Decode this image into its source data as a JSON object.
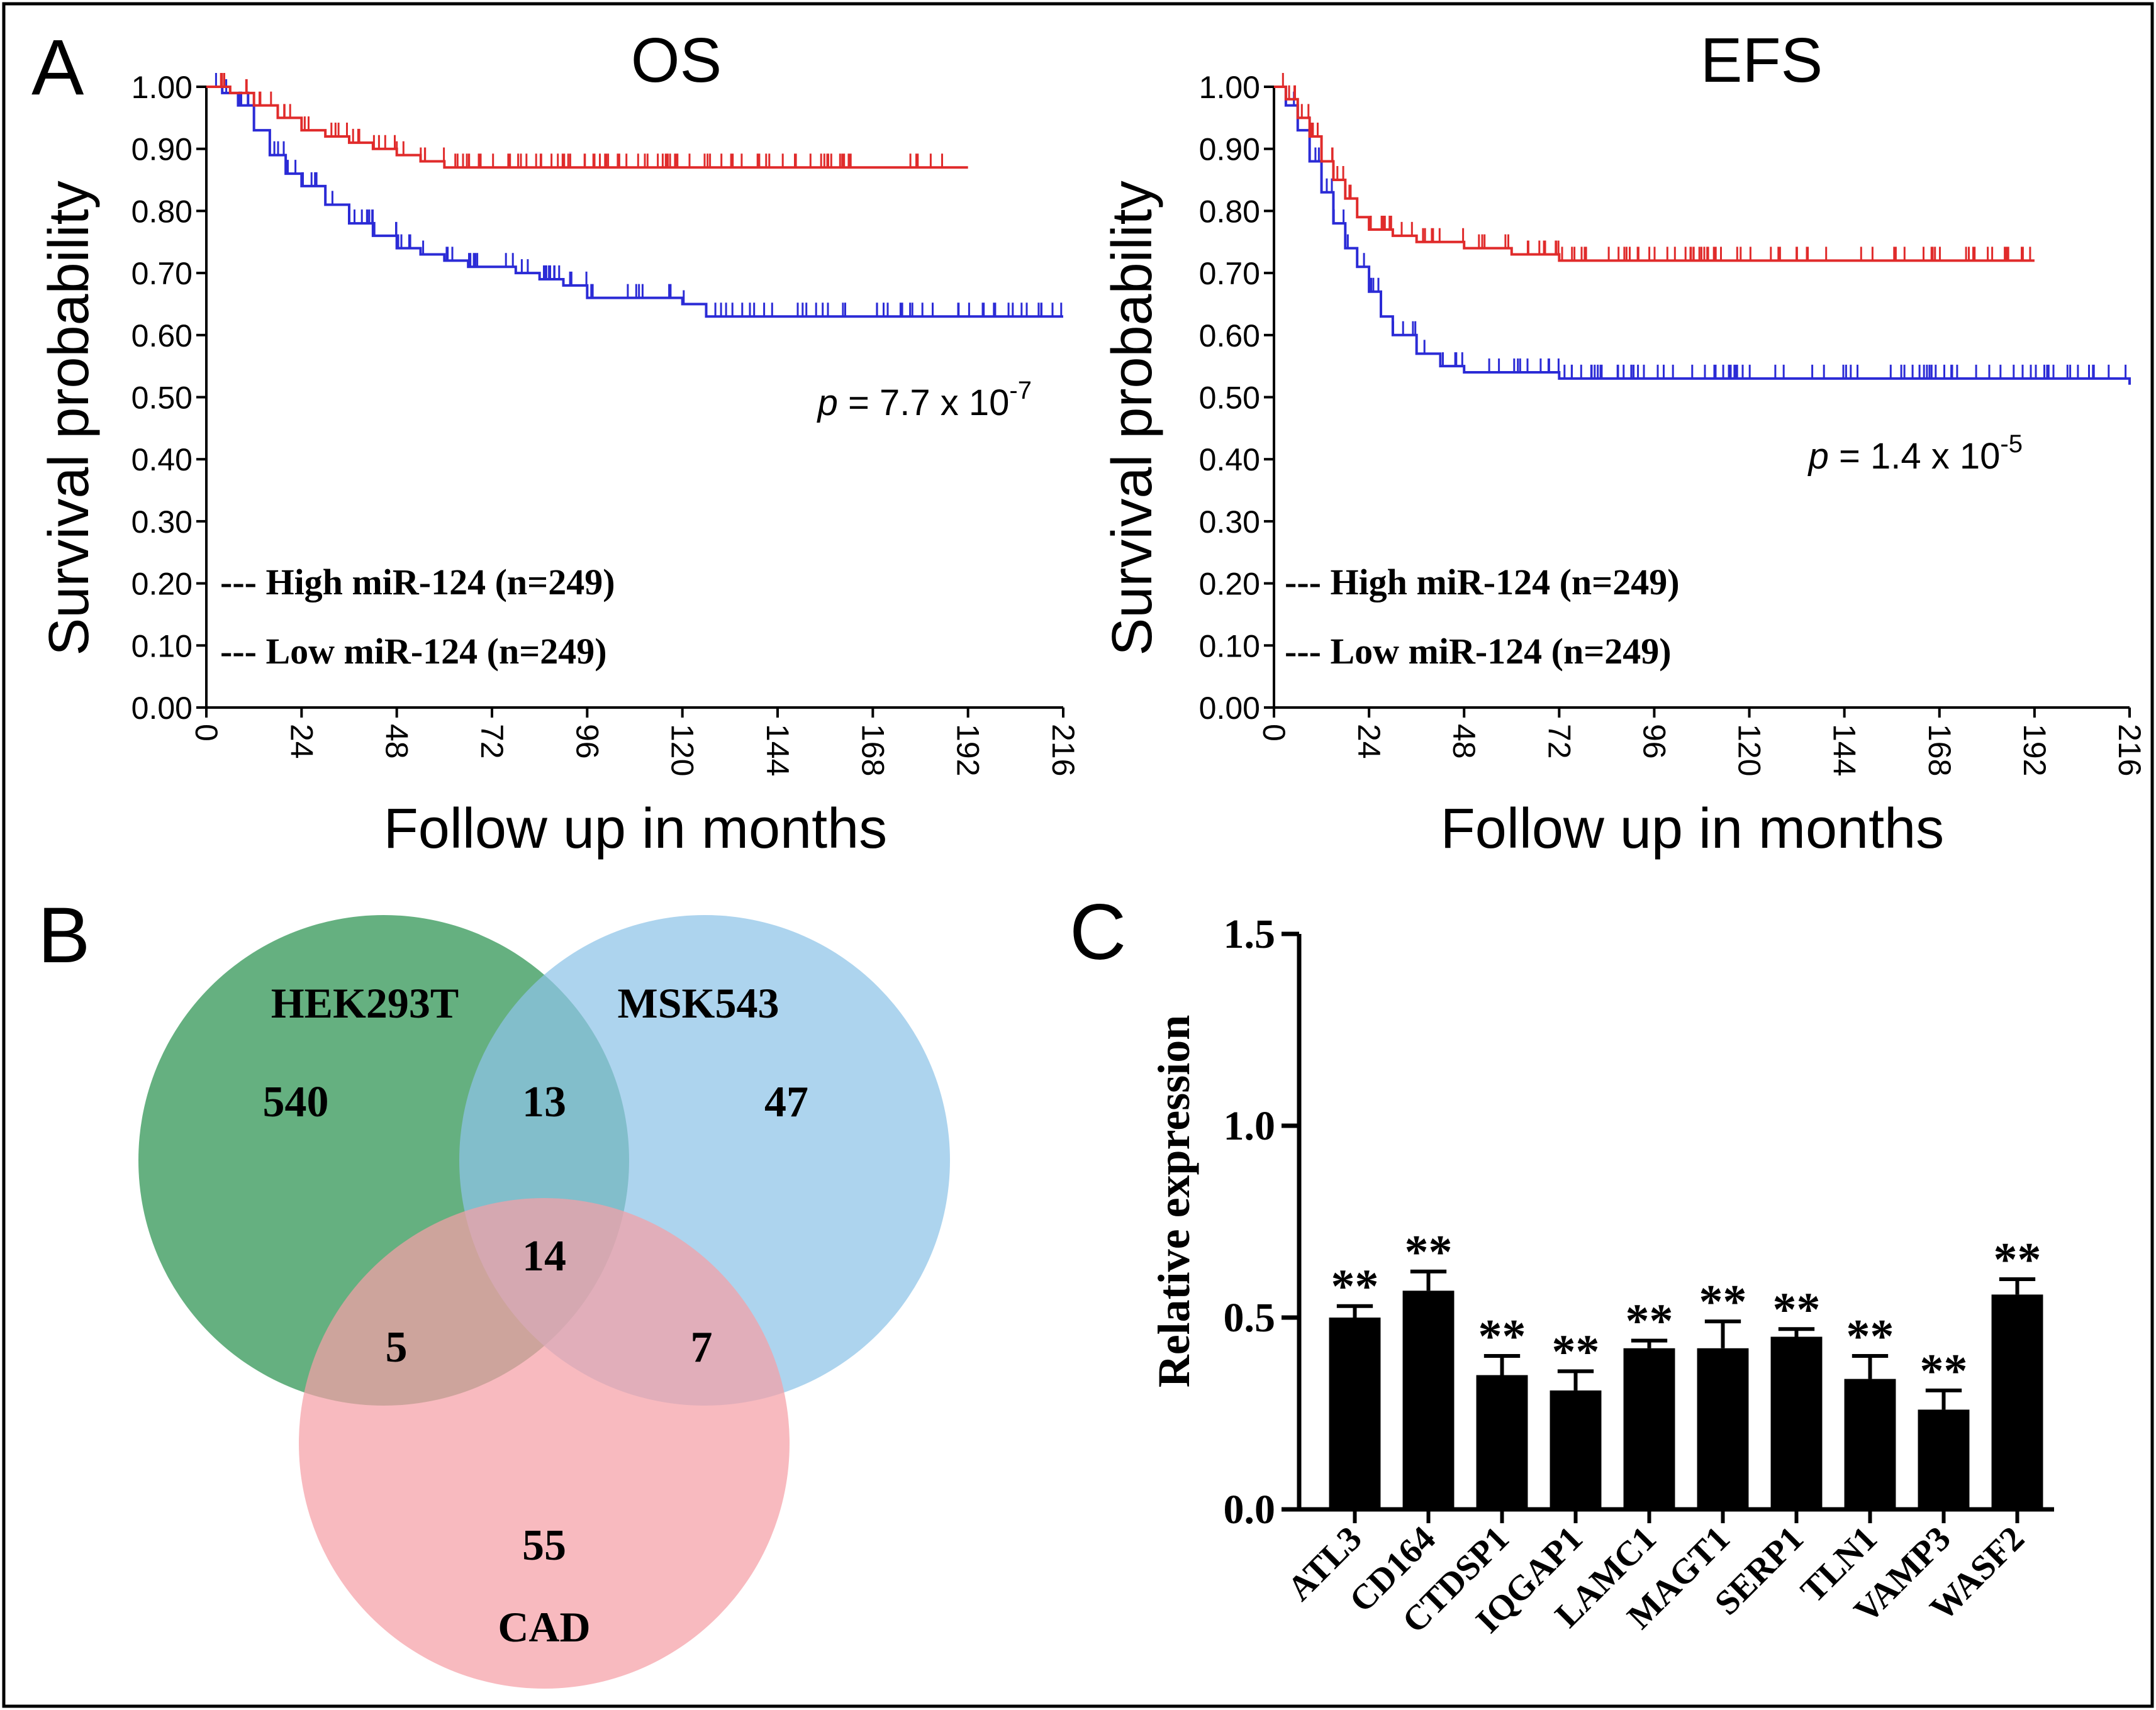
{
  "figure": {
    "panel_a_label": "A",
    "panel_b_label": "B",
    "panel_c_label": "C"
  },
  "chart_data": [
    {
      "type": "line",
      "panel": "A",
      "title": "OS",
      "xlabel": "Follow up in months",
      "ylabel": "Survival probability",
      "xlim": [
        0,
        216
      ],
      "ylim": [
        0,
        1
      ],
      "x_ticks": [
        "0",
        "24",
        "48",
        "72",
        "96",
        "120",
        "144",
        "168",
        "192",
        "216"
      ],
      "y_ticks": [
        "0.00",
        "0.10",
        "0.20",
        "0.30",
        "0.40",
        "0.50",
        "0.60",
        "0.70",
        "0.80",
        "0.90",
        "1.00"
      ],
      "p_value": {
        "prefix": "p",
        "text": " = 7.7 x 10",
        "exponent": "-7"
      },
      "series": [
        {
          "name": "High miR-124 (n=249)",
          "legend_prefix": "---",
          "color": "#2b2bd6",
          "x": [
            0,
            4,
            8,
            12,
            16,
            20,
            24,
            30,
            36,
            42,
            48,
            54,
            60,
            66,
            72,
            78,
            84,
            90,
            96,
            108,
            120,
            126,
            140,
            160,
            180,
            200,
            216
          ],
          "y": [
            1.0,
            0.99,
            0.97,
            0.93,
            0.89,
            0.86,
            0.84,
            0.81,
            0.78,
            0.76,
            0.74,
            0.73,
            0.72,
            0.71,
            0.71,
            0.7,
            0.69,
            0.68,
            0.66,
            0.66,
            0.65,
            0.63,
            0.63,
            0.63,
            0.63,
            0.63,
            0.63
          ]
        },
        {
          "name": "Low miR-124 (n=249)",
          "legend_prefix": "---",
          "color": "#e02b2b",
          "x": [
            0,
            6,
            12,
            18,
            24,
            30,
            36,
            42,
            48,
            54,
            60,
            72,
            96,
            120,
            144,
            168,
            192
          ],
          "y": [
            1.0,
            0.99,
            0.97,
            0.95,
            0.93,
            0.92,
            0.91,
            0.9,
            0.89,
            0.88,
            0.87,
            0.87,
            0.87,
            0.87,
            0.87,
            0.87,
            0.87
          ]
        }
      ]
    },
    {
      "type": "line",
      "panel": "A",
      "title": "EFS",
      "xlabel": "Follow up in months",
      "ylabel": "Survival probability",
      "xlim": [
        0,
        216
      ],
      "ylim": [
        0,
        1
      ],
      "x_ticks": [
        "0",
        "24",
        "48",
        "72",
        "96",
        "120",
        "144",
        "168",
        "192",
        "216"
      ],
      "y_ticks": [
        "0.00",
        "0.10",
        "0.20",
        "0.30",
        "0.40",
        "0.50",
        "0.60",
        "0.70",
        "0.80",
        "0.90",
        "1.00"
      ],
      "p_value": {
        "prefix": "p",
        "text": " = 1.4 x 10",
        "exponent": "-5"
      },
      "series": [
        {
          "name": "High miR-124 (n=249)",
          "legend_prefix": "---",
          "color": "#2b2bd6",
          "x": [
            0,
            3,
            6,
            9,
            12,
            15,
            18,
            21,
            24,
            27,
            30,
            36,
            42,
            48,
            60,
            72,
            96,
            120,
            168,
            216
          ],
          "y": [
            1.0,
            0.97,
            0.93,
            0.88,
            0.83,
            0.78,
            0.74,
            0.71,
            0.67,
            0.63,
            0.6,
            0.57,
            0.55,
            0.54,
            0.54,
            0.53,
            0.53,
            0.53,
            0.53,
            0.52
          ]
        },
        {
          "name": "Low miR-124 (n=249)",
          "legend_prefix": "---",
          "color": "#e02b2b",
          "x": [
            0,
            3,
            6,
            9,
            12,
            15,
            18,
            21,
            24,
            30,
            36,
            48,
            60,
            72,
            96,
            120,
            168,
            192
          ],
          "y": [
            1.0,
            0.98,
            0.95,
            0.92,
            0.88,
            0.85,
            0.82,
            0.79,
            0.77,
            0.76,
            0.75,
            0.74,
            0.73,
            0.72,
            0.72,
            0.72,
            0.72,
            0.72
          ]
        }
      ]
    },
    {
      "type": "venn",
      "panel": "B",
      "sets": [
        {
          "name": "HEK293T",
          "color": "#3a9a5c"
        },
        {
          "name": "MSK543",
          "color": "#8ec3e8"
        },
        {
          "name": "CAD",
          "color": "#f5a0a6"
        }
      ],
      "regions": {
        "HEK293T_only": 540,
        "HEK293T_MSK543": 13,
        "MSK543_only": 47,
        "all_three": 14,
        "HEK293T_CAD": 5,
        "MSK543_CAD": 7,
        "CAD_only": 55
      }
    },
    {
      "type": "bar",
      "panel": "C",
      "ylabel": "Relative expression",
      "ylim": [
        0,
        1.5
      ],
      "y_ticks": [
        "0.0",
        "0.5",
        "1.0",
        "1.5"
      ],
      "categories": [
        "ATL3",
        "CD164",
        "CTDSP1",
        "IQGAP1",
        "LAMC1",
        "MAGT1",
        "SERP1",
        "TLN1",
        "VAMP3",
        "WASF2"
      ],
      "values": [
        0.5,
        0.57,
        0.35,
        0.31,
        0.42,
        0.42,
        0.45,
        0.34,
        0.26,
        0.56
      ],
      "errors": [
        0.03,
        0.05,
        0.05,
        0.05,
        0.02,
        0.07,
        0.02,
        0.06,
        0.05,
        0.04
      ],
      "significance": [
        "**",
        "**",
        "**",
        "**",
        "**",
        "**",
        "**",
        "**",
        "**",
        "**"
      ]
    }
  ]
}
